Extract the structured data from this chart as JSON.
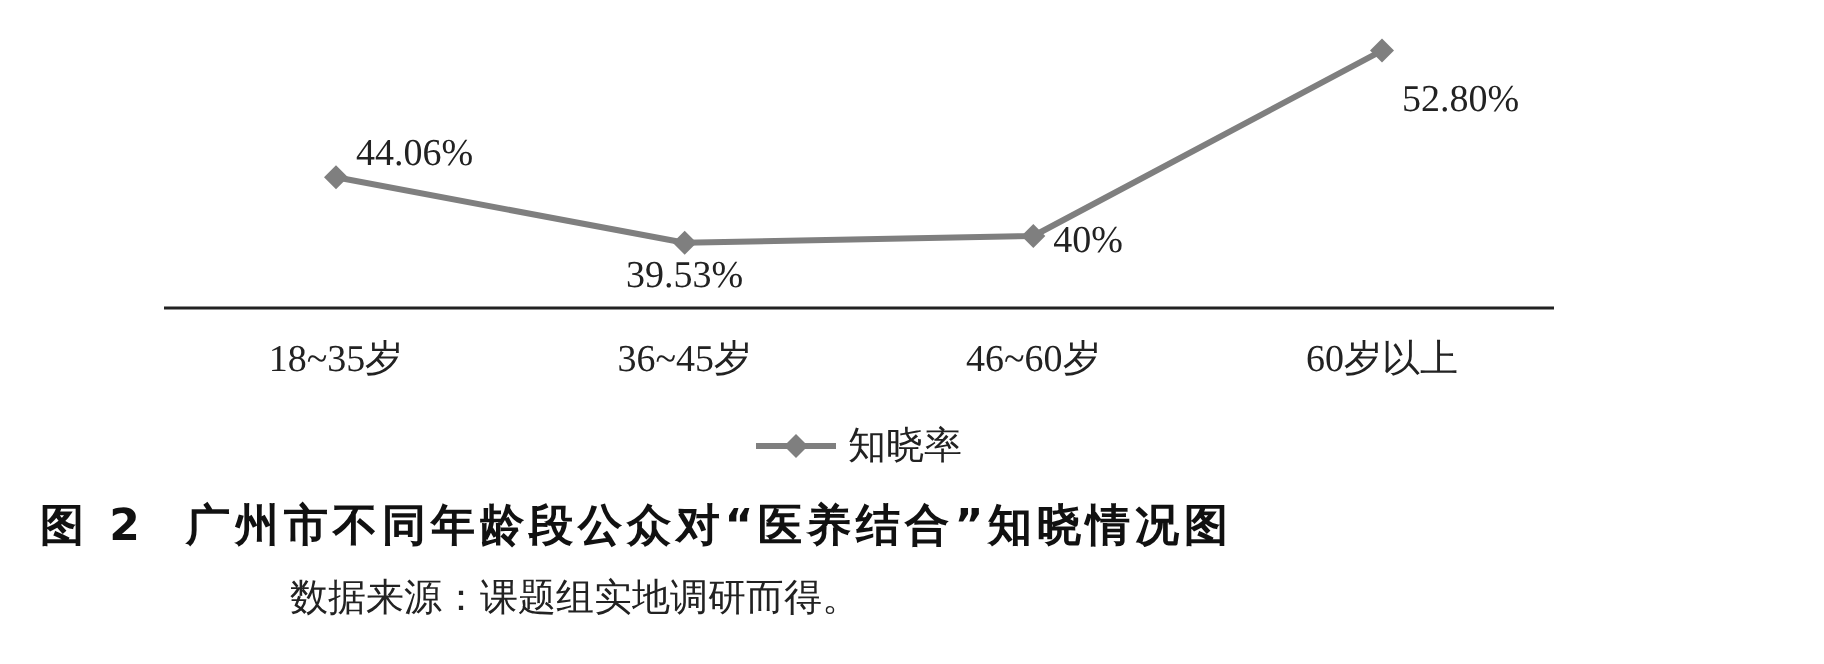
{
  "chart_data": {
    "type": "line",
    "title": "图 2  广州市不同年龄段公众对“医养结合”知晓情况图",
    "annotations": [
      "数据来源：课题组实地调研而得。"
    ],
    "categories": [
      "18~35岁",
      "36~45岁",
      "46~60岁",
      "60岁以上"
    ],
    "series": [
      {
        "name": "知晓率",
        "color": "#7f7f7f",
        "values": [
          44.06,
          39.53,
          40,
          52.8
        ],
        "value_labels": [
          "44.06%",
          "39.53%",
          "40%",
          "52.80%"
        ]
      }
    ],
    "marker": "diamond",
    "legend": "bottom",
    "grid": false
  }
}
